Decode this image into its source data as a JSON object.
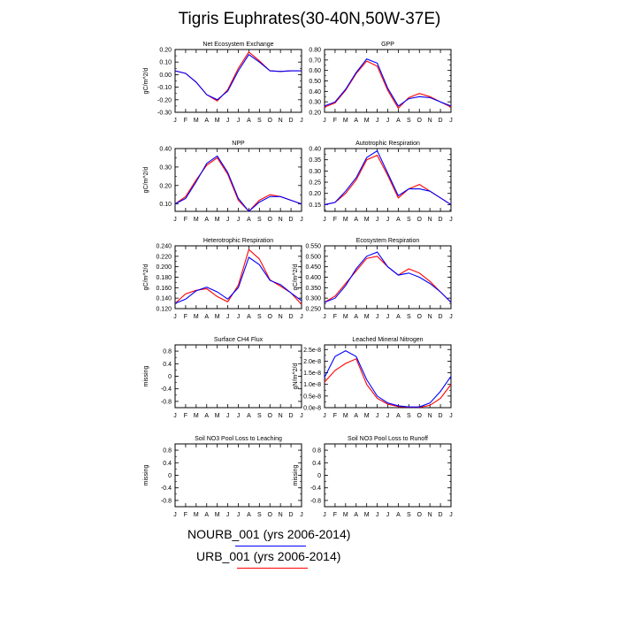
{
  "page": {
    "title": "Tigris Euphrates(30-40N,50W-37E)",
    "legend": [
      {
        "label": "NOURB_001 (yrs 2006-2014)",
        "color": "#0000ff"
      },
      {
        "label": "URB_001 (yrs 2006-2014)",
        "color": "#ff0000"
      }
    ]
  },
  "chart_data": [
    {
      "type": "line",
      "title": "Net Ecosystem Exchange",
      "ylabel": "gC/m^2/d",
      "x": [
        "J",
        "F",
        "M",
        "A",
        "M",
        "J",
        "J",
        "A",
        "S",
        "O",
        "N",
        "D",
        "J"
      ],
      "ylim": [
        -0.3,
        0.2
      ],
      "yticks": [
        "-0.30",
        "-0.20",
        "-0.10",
        "0.00",
        "0.10",
        "0.20"
      ],
      "ytick_values": [
        -0.3,
        -0.2,
        -0.1,
        0.0,
        0.1,
        0.2
      ],
      "series": [
        {
          "color": "#ff0000",
          "values": [
            0.03,
            0.01,
            -0.06,
            -0.16,
            -0.21,
            -0.12,
            0.05,
            0.18,
            0.11,
            0.03,
            0.025,
            0.03,
            0.03
          ]
        },
        {
          "color": "#0000ff",
          "values": [
            0.03,
            0.01,
            -0.06,
            -0.16,
            -0.2,
            -0.13,
            0.03,
            0.16,
            0.1,
            0.03,
            0.025,
            0.03,
            0.03
          ]
        }
      ]
    },
    {
      "type": "line",
      "title": "GPP",
      "ylabel": "",
      "x": [
        "J",
        "F",
        "M",
        "A",
        "M",
        "J",
        "J",
        "A",
        "S",
        "O",
        "N",
        "D",
        "J"
      ],
      "ylim": [
        0.2,
        0.8
      ],
      "yticks": [
        "0.20",
        "0.30",
        "0.40",
        "0.50",
        "0.60",
        "0.70",
        "0.80"
      ],
      "ytick_values": [
        0.2,
        0.3,
        0.4,
        0.5,
        0.6,
        0.7,
        0.8
      ],
      "series": [
        {
          "color": "#ff0000",
          "values": [
            0.25,
            0.29,
            0.41,
            0.57,
            0.69,
            0.64,
            0.41,
            0.24,
            0.34,
            0.38,
            0.35,
            0.3,
            0.25
          ]
        },
        {
          "color": "#0000ff",
          "values": [
            0.26,
            0.3,
            0.42,
            0.58,
            0.71,
            0.67,
            0.43,
            0.26,
            0.33,
            0.35,
            0.34,
            0.3,
            0.26
          ]
        }
      ]
    },
    {
      "type": "line",
      "title": "NPP",
      "ylabel": "gC/m^2/d",
      "x": [
        "J",
        "F",
        "M",
        "A",
        "M",
        "J",
        "J",
        "A",
        "S",
        "O",
        "N",
        "D",
        "J"
      ],
      "ylim": [
        0.06,
        0.4
      ],
      "yticks": [
        "0.10",
        "0.20",
        "0.30",
        "0.40"
      ],
      "ytick_values": [
        0.1,
        0.2,
        0.3,
        0.4
      ],
      "series": [
        {
          "color": "#ff0000",
          "values": [
            0.1,
            0.14,
            0.23,
            0.31,
            0.35,
            0.26,
            0.12,
            0.06,
            0.12,
            0.15,
            0.14,
            0.12,
            0.1
          ]
        },
        {
          "color": "#0000ff",
          "values": [
            0.1,
            0.13,
            0.22,
            0.32,
            0.36,
            0.27,
            0.13,
            0.06,
            0.11,
            0.14,
            0.14,
            0.12,
            0.1
          ]
        }
      ]
    },
    {
      "type": "line",
      "title": "Autotrophic Respiration",
      "ylabel": "",
      "x": [
        "J",
        "F",
        "M",
        "A",
        "M",
        "J",
        "J",
        "A",
        "S",
        "O",
        "N",
        "D",
        "J"
      ],
      "ylim": [
        0.12,
        0.4
      ],
      "yticks": [
        "0.15",
        "0.20",
        "0.25",
        "0.30",
        "0.35",
        "0.40"
      ],
      "ytick_values": [
        0.15,
        0.2,
        0.25,
        0.3,
        0.35,
        0.4
      ],
      "series": [
        {
          "color": "#ff0000",
          "values": [
            0.15,
            0.16,
            0.2,
            0.26,
            0.35,
            0.37,
            0.28,
            0.18,
            0.22,
            0.24,
            0.21,
            0.18,
            0.15
          ]
        },
        {
          "color": "#0000ff",
          "values": [
            0.15,
            0.16,
            0.21,
            0.27,
            0.36,
            0.39,
            0.29,
            0.19,
            0.22,
            0.22,
            0.21,
            0.18,
            0.15
          ]
        }
      ]
    },
    {
      "type": "line",
      "title": "Heterotrophic Respiration",
      "ylabel": "gC/m^2/d",
      "x": [
        "J",
        "F",
        "M",
        "A",
        "M",
        "J",
        "J",
        "A",
        "S",
        "O",
        "N",
        "D",
        "J"
      ],
      "ylim": [
        0.12,
        0.24
      ],
      "yticks": [
        "0.120",
        "0.140",
        "0.160",
        "0.180",
        "0.200",
        "0.220",
        "0.240"
      ],
      "ytick_values": [
        0.12,
        0.14,
        0.16,
        0.18,
        0.2,
        0.22,
        0.24
      ],
      "series": [
        {
          "color": "#ff0000",
          "values": [
            0.13,
            0.148,
            0.155,
            0.158,
            0.143,
            0.133,
            0.165,
            0.233,
            0.215,
            0.175,
            0.163,
            0.15,
            0.128
          ]
        },
        {
          "color": "#0000ff",
          "values": [
            0.13,
            0.138,
            0.154,
            0.161,
            0.152,
            0.138,
            0.16,
            0.218,
            0.204,
            0.174,
            0.166,
            0.15,
            0.135
          ]
        }
      ]
    },
    {
      "type": "line",
      "title": "Ecosystem Respiration",
      "ylabel": "gC/m^2/d",
      "x": [
        "J",
        "F",
        "M",
        "A",
        "M",
        "J",
        "J",
        "A",
        "S",
        "O",
        "N",
        "D",
        "J"
      ],
      "ylim": [
        0.25,
        0.55
      ],
      "yticks": [
        "0.250",
        "0.300",
        "0.350",
        "0.400",
        "0.450",
        "0.500",
        "0.550"
      ],
      "ytick_values": [
        0.25,
        0.3,
        0.35,
        0.4,
        0.45,
        0.5,
        0.55
      ],
      "series": [
        {
          "color": "#ff0000",
          "values": [
            0.28,
            0.31,
            0.37,
            0.43,
            0.49,
            0.5,
            0.45,
            0.41,
            0.44,
            0.42,
            0.38,
            0.33,
            0.28
          ]
        },
        {
          "color": "#0000ff",
          "values": [
            0.28,
            0.3,
            0.36,
            0.44,
            0.5,
            0.52,
            0.45,
            0.41,
            0.42,
            0.4,
            0.37,
            0.33,
            0.28
          ]
        }
      ]
    },
    {
      "type": "line",
      "title": "Surface CH4 Flux",
      "ylabel": "missing",
      "x": [
        "J",
        "F",
        "M",
        "A",
        "M",
        "J",
        "J",
        "A",
        "S",
        "O",
        "N",
        "D",
        "J"
      ],
      "ylim": [
        -1.0,
        1.0
      ],
      "yticks": [
        "-0.8",
        "-0.4",
        "0",
        "0.4",
        "0.8"
      ],
      "ytick_values": [
        -0.8,
        -0.4,
        0,
        0.4,
        0.8
      ],
      "series": []
    },
    {
      "type": "line",
      "title": "Leached Mineral Nitrogen",
      "ylabel": "gN/m^2/d",
      "x": [
        "J",
        "F",
        "M",
        "A",
        "M",
        "J",
        "J",
        "A",
        "S",
        "O",
        "N",
        "D",
        "J"
      ],
      "ylim": [
        0.0,
        2.7e-08
      ],
      "yticks": [
        "0.0e-8",
        "0.5e-8",
        "1.0e-8",
        "1.5e-8",
        "2.0e-8",
        "2.5e-8"
      ],
      "ytick_values": [
        0.0,
        5e-09,
        1e-08,
        1.5e-08,
        2e-08,
        2.5e-08
      ],
      "series": [
        {
          "color": "#ff0000",
          "values": [
            1.1e-08,
            1.6e-08,
            1.9e-08,
            2.1e-08,
            1e-08,
            4e-09,
            1.5e-09,
            5e-10,
            2e-10,
            2e-10,
            1e-09,
            4e-09,
            1e-08
          ]
        },
        {
          "color": "#0000ff",
          "values": [
            1.3e-08,
            2.2e-08,
            2.45e-08,
            2.2e-08,
            1.2e-08,
            5e-09,
            2e-09,
            8e-10,
            3e-10,
            3e-10,
            2e-09,
            7e-09,
            1.35e-08
          ]
        }
      ]
    },
    {
      "type": "line",
      "title": "Soil NO3 Pool Loss to Leaching",
      "ylabel": "missing",
      "x": [
        "J",
        "F",
        "M",
        "A",
        "M",
        "J",
        "J",
        "A",
        "S",
        "O",
        "N",
        "D",
        "J"
      ],
      "ylim": [
        -1.0,
        1.0
      ],
      "yticks": [
        "-0.8",
        "-0.4",
        "0",
        "0.4",
        "0.8"
      ],
      "ytick_values": [
        -0.8,
        -0.4,
        0,
        0.4,
        0.8
      ],
      "series": []
    },
    {
      "type": "line",
      "title": "Soil NO3 Pool Loss to Runoff",
      "ylabel": "missing",
      "x": [
        "J",
        "F",
        "M",
        "A",
        "M",
        "J",
        "J",
        "A",
        "S",
        "O",
        "N",
        "D",
        "J"
      ],
      "ylim": [
        -1.0,
        1.0
      ],
      "yticks": [
        "-0.8",
        "-0.4",
        "0",
        "0.4",
        "0.8"
      ],
      "ytick_values": [
        -0.8,
        -0.4,
        0,
        0.4,
        0.8
      ],
      "series": []
    }
  ]
}
